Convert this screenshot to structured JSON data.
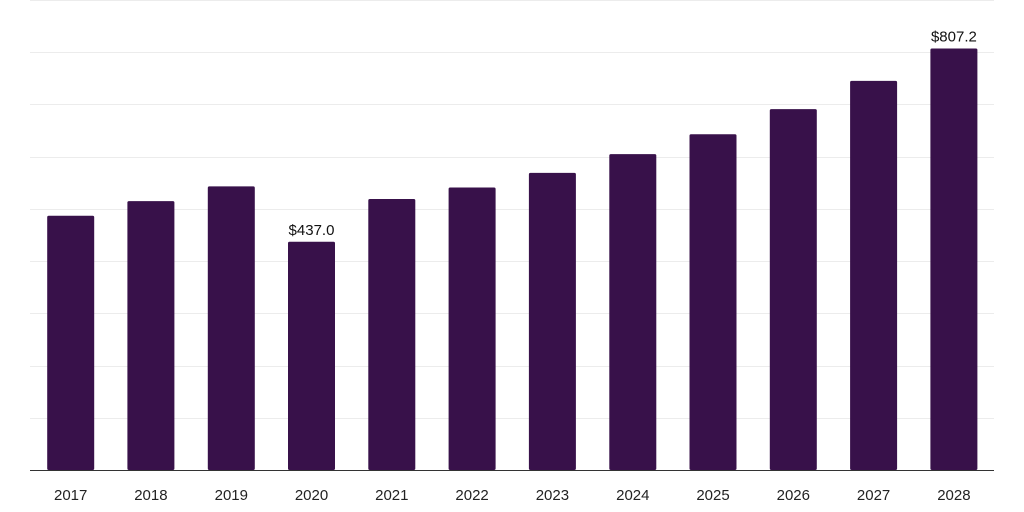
{
  "chart_data": {
    "type": "bar",
    "categories": [
      "2017",
      "2018",
      "2019",
      "2020",
      "2021",
      "2022",
      "2023",
      "2024",
      "2025",
      "2026",
      "2027",
      "2028"
    ],
    "values": [
      487,
      515,
      543,
      437,
      519,
      541,
      569,
      605,
      643,
      691,
      745,
      807.2
    ],
    "data_labels": [
      {
        "category": "2020",
        "text": "$437.0"
      },
      {
        "category": "2028",
        "text": "$807.2"
      }
    ],
    "title": "",
    "xlabel": "",
    "ylabel": "",
    "ylim": [
      0,
      900
    ],
    "y_axis_labels_shown": false,
    "grid": true,
    "legend": "none",
    "colors": {
      "bar": "#38114a",
      "grid": "#ececec",
      "baseline": "#333333"
    }
  }
}
